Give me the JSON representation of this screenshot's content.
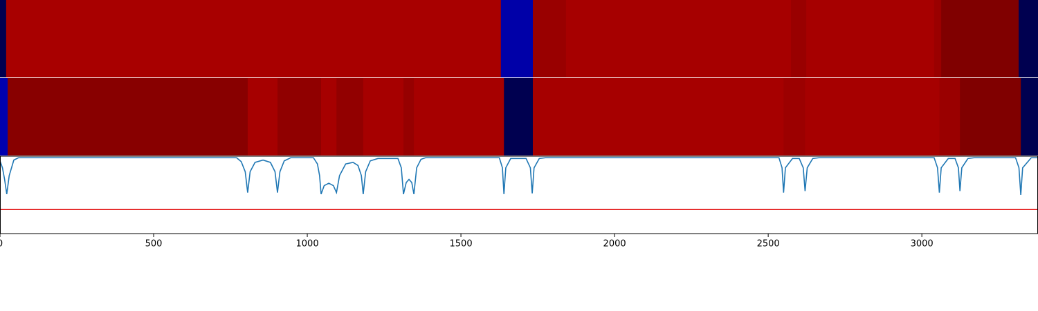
{
  "chart_data": [
    {
      "type": "segments",
      "xlim": [
        0,
        3378
      ],
      "bins": [
        0,
        20,
        1630,
        1734,
        1842,
        2574,
        2624,
        3040,
        3063,
        3315,
        3378
      ],
      "colors": [
        "#000050",
        "#a80000",
        "#0000a8",
        "#990000",
        "#a60000",
        "#990000",
        "#a60000",
        "#9a0000",
        "#800000",
        "#000050"
      ]
    },
    {
      "type": "segments",
      "xlim": [
        0,
        3378
      ],
      "bins": [
        0,
        25,
        806,
        903,
        1045,
        1095,
        1182,
        1313,
        1347,
        1640,
        1734,
        2550,
        2620,
        3057,
        3124,
        3322,
        3378
      ],
      "colors": [
        "#0000b0",
        "#880000",
        "#a60000",
        "#900000",
        "#a60000",
        "#920000",
        "#a60000",
        "#960000",
        "#a60000",
        "#000050",
        "#a60000",
        "#9c0000",
        "#a60000",
        "#9a0000",
        "#800000",
        "#000050"
      ]
    },
    {
      "type": "line",
      "xlim": [
        0,
        3378
      ],
      "ylim": [
        0,
        1
      ],
      "color": "#1f77b4",
      "xticks": [
        0,
        500,
        1000,
        1500,
        2000,
        2500,
        3000
      ],
      "hline": {
        "value": 0.31,
        "color": "#e00000"
      },
      "x": [
        0,
        8,
        15,
        22,
        30,
        45,
        60,
        770,
        785,
        798,
        806,
        814,
        830,
        856,
        880,
        895,
        903,
        911,
        925,
        946,
        1020,
        1033,
        1040,
        1045,
        1055,
        1070,
        1085,
        1095,
        1105,
        1125,
        1149,
        1165,
        1176,
        1182,
        1190,
        1205,
        1230,
        1295,
        1306,
        1313,
        1322,
        1331,
        1340,
        1347,
        1356,
        1370,
        1385,
        1625,
        1635,
        1640,
        1646,
        1662,
        1712,
        1726,
        1732,
        1738,
        1755,
        1775,
        2535,
        2545,
        2550,
        2556,
        2579,
        2601,
        2614,
        2620,
        2627,
        2645,
        2665,
        3040,
        3051,
        3057,
        3063,
        3086,
        3108,
        3119,
        3124,
        3130,
        3150,
        3170,
        3305,
        3316,
        3322,
        3328,
        3356,
        3378
      ],
      "values": [
        0.94,
        0.85,
        0.7,
        0.51,
        0.75,
        0.95,
        0.98,
        0.98,
        0.93,
        0.8,
        0.53,
        0.8,
        0.92,
        0.95,
        0.92,
        0.8,
        0.53,
        0.8,
        0.94,
        0.98,
        0.98,
        0.9,
        0.75,
        0.51,
        0.62,
        0.65,
        0.62,
        0.53,
        0.75,
        0.9,
        0.92,
        0.88,
        0.75,
        0.51,
        0.8,
        0.94,
        0.97,
        0.97,
        0.85,
        0.51,
        0.66,
        0.7,
        0.66,
        0.51,
        0.85,
        0.96,
        0.98,
        0.98,
        0.85,
        0.51,
        0.85,
        0.97,
        0.97,
        0.85,
        0.52,
        0.85,
        0.97,
        0.98,
        0.98,
        0.85,
        0.53,
        0.85,
        0.97,
        0.97,
        0.85,
        0.55,
        0.85,
        0.97,
        0.98,
        0.98,
        0.85,
        0.53,
        0.85,
        0.97,
        0.97,
        0.85,
        0.55,
        0.85,
        0.97,
        0.98,
        0.98,
        0.85,
        0.5,
        0.85,
        0.98,
        0.98
      ]
    }
  ]
}
